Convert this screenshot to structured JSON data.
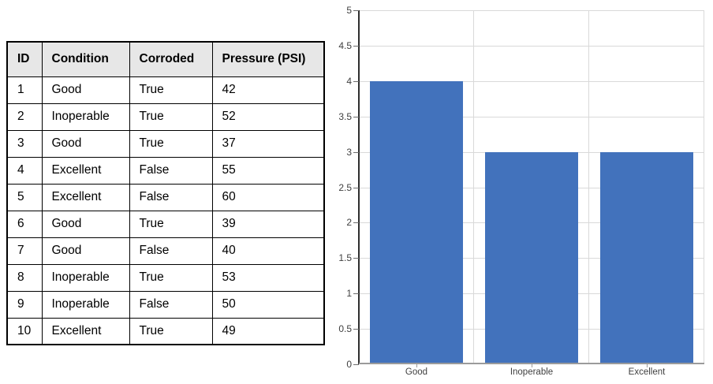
{
  "table": {
    "columns": [
      "ID",
      "Condition",
      "Corroded",
      "Pressure (PSI)"
    ],
    "rows": [
      [
        "1",
        "Good",
        "True",
        "42"
      ],
      [
        "2",
        "Inoperable",
        "True",
        "52"
      ],
      [
        "3",
        "Good",
        "True",
        "37"
      ],
      [
        "4",
        "Excellent",
        "False",
        "55"
      ],
      [
        "5",
        "Excellent",
        "False",
        "60"
      ],
      [
        "6",
        "Good",
        "True",
        "39"
      ],
      [
        "7",
        "Good",
        "False",
        "40"
      ],
      [
        "8",
        "Inoperable",
        "True",
        "53"
      ],
      [
        "9",
        "Inoperable",
        "False",
        "50"
      ],
      [
        "10",
        "Excellent",
        "True",
        "49"
      ]
    ],
    "header_bg": "#E7E7E7",
    "border_color": "#000000"
  },
  "chart_data": {
    "type": "bar",
    "categories": [
      "Good",
      "Inoperable",
      "Excellent"
    ],
    "values": [
      4,
      3,
      3
    ],
    "title": "",
    "xlabel": "",
    "ylabel": "",
    "ylim": [
      0,
      5
    ],
    "ytick_step": 0.5,
    "ytick_labels": [
      "0",
      "0.5",
      "1",
      "1.5",
      "2",
      "2.5",
      "3",
      "3.5",
      "4",
      "4.5",
      "5"
    ],
    "grid": true,
    "legend": "none",
    "bar_color": "#4272BC",
    "gridline_color": "#D9D9D9",
    "y_axis_color": "#2E2E2E",
    "baseline_color": "#9B9B9B",
    "tick_label_color": "#3F3F3F"
  }
}
